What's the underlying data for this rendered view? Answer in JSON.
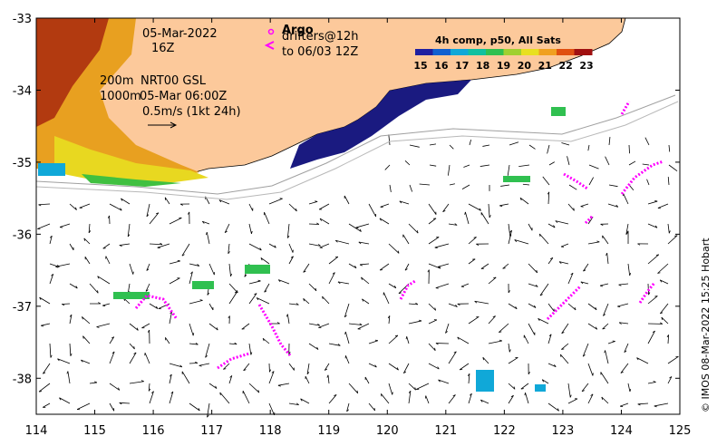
{
  "map": {
    "lon_ticks": [
      "114",
      "115",
      "116",
      "117",
      "118",
      "119",
      "120",
      "121",
      "122",
      "123",
      "124",
      "125"
    ],
    "lat_ticks": [
      "-33",
      "-34",
      "-35",
      "-36",
      "-37",
      "-38"
    ],
    "lon_range": [
      114,
      125
    ],
    "lat_range": [
      -38.5,
      -33
    ]
  },
  "annotations": {
    "date": "05-Mar-2022",
    "time": "16Z",
    "depth_200": "200m",
    "depth_1000": "1000m",
    "nrt_label": "NRT00 GSL",
    "nrt_time": "05-Mar 06:00Z",
    "scale_label": "0.5m/s (1kt 24h)"
  },
  "legend": {
    "argo_label": "Argo",
    "drifters_label": "drifters@12h",
    "drifters_until": "to 06/03 12Z",
    "colorbar_title": "4h comp, p50, All Sats",
    "colorbar_ticks": [
      "15",
      "16",
      "17",
      "18",
      "19",
      "20",
      "21",
      "22",
      "23"
    ],
    "colorbar_colors": [
      "#1f1fa0",
      "#1060d0",
      "#10a8d8",
      "#10c0a0",
      "#30c050",
      "#a0d030",
      "#e8e020",
      "#f0a020",
      "#e05010",
      "#a01010"
    ]
  },
  "credit": "© IMOS 08-Mar-2022 15:25 Hobart",
  "colors": {
    "land": "#fcc99b",
    "drifter": "#ff00ff",
    "coastline": "#000000"
  }
}
